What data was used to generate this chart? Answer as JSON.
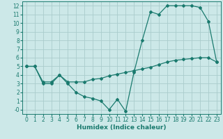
{
  "xlabel": "Humidex (Indice chaleur)",
  "bg_color": "#cce8e8",
  "line_color": "#1a7a6e",
  "grid_color": "#aacccc",
  "xlim": [
    -0.5,
    23.5
  ],
  "ylim": [
    -0.5,
    12.5
  ],
  "xticks": [
    0,
    1,
    2,
    3,
    4,
    5,
    6,
    7,
    8,
    9,
    10,
    11,
    12,
    13,
    14,
    15,
    16,
    17,
    18,
    19,
    20,
    21,
    22,
    23
  ],
  "yticks": [
    0,
    1,
    2,
    3,
    4,
    5,
    6,
    7,
    8,
    9,
    10,
    11,
    12
  ],
  "ytick_labels": [
    "-0",
    "1",
    "2",
    "3",
    "4",
    "5",
    "6",
    "7",
    "8",
    "9",
    "10",
    "11",
    "12"
  ],
  "series1_x": [
    0,
    1,
    2,
    3,
    4,
    5,
    6,
    7,
    8,
    9,
    10,
    11,
    12,
    13,
    14,
    15,
    16,
    17,
    18,
    19,
    20,
    21,
    22,
    23
  ],
  "series1_y": [
    5.0,
    5.0,
    3.0,
    3.0,
    4.0,
    3.0,
    2.0,
    1.5,
    1.3,
    1.0,
    0.0,
    1.2,
    -0.2,
    4.3,
    8.0,
    11.3,
    11.0,
    12.0,
    12.0,
    12.0,
    12.0,
    11.8,
    10.2,
    5.5
  ],
  "series2_x": [
    0,
    1,
    2,
    3,
    4,
    5,
    6,
    7,
    8,
    9,
    10,
    11,
    12,
    13,
    14,
    15,
    16,
    17,
    18,
    19,
    20,
    21,
    22,
    23
  ],
  "series2_y": [
    5.0,
    5.0,
    3.2,
    3.2,
    4.0,
    3.2,
    3.2,
    3.2,
    3.5,
    3.6,
    3.9,
    4.1,
    4.3,
    4.5,
    4.7,
    4.9,
    5.2,
    5.5,
    5.7,
    5.8,
    5.9,
    6.0,
    6.0,
    5.5
  ]
}
